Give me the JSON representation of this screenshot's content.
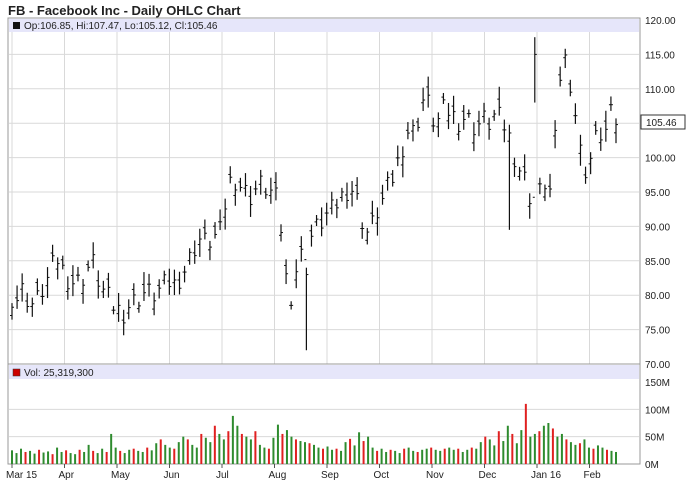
{
  "title": "FB - Facebook Inc - Daily OHLC Chart",
  "ohlc_summary": "Op:106.85, Hi:107.47, Lo:105.12, Cl:105.46",
  "volume_summary": "Vol: 25,319,300",
  "last_price_label": "105.46",
  "colors": {
    "bars": "#111111",
    "header_band": "#e6e6fa",
    "grid": "#d9d9d9",
    "volume_up": "#2e8b2e",
    "volume_down": "#e02020",
    "last_price_box": "#ffffff",
    "volume_marker": "#cc0000"
  },
  "chart_data": [
    {
      "type": "ohlc",
      "title": "",
      "y_ticks": [
        "120.00",
        "115.00",
        "110.00",
        "105.00",
        "100.00",
        "95.00",
        "90.00",
        "85.00",
        "80.00",
        "75.00",
        "70.00"
      ],
      "ylim": [
        70,
        120
      ],
      "x_ticks": [
        "Mar 15",
        "Apr",
        "May",
        "Jun",
        "Jul",
        "Aug",
        "Sep",
        "Oct",
        "Nov",
        "Dec",
        "Jan 16",
        "Feb"
      ],
      "grid": true,
      "series": [
        {
          "path": [
            [
              "Mar 15",
              80.0
            ],
            [
              "Mar 15",
              79.5
            ],
            [
              "Mar 15",
              81.0
            ],
            [
              "Mar 15",
              79.0
            ],
            [
              "Mar 15",
              78.5
            ],
            [
              "Apr",
              80.5
            ],
            [
              "Apr",
              82.0
            ],
            [
              "Apr",
              84.0
            ],
            [
              "Apr",
              85.5
            ],
            [
              "Apr",
              83.0
            ],
            [
              "Apr",
              82.5
            ],
            [
              "Apr",
              81.5
            ],
            [
              "Apr",
              82.5
            ],
            [
              "Apr",
              84.0
            ],
            [
              "Apr",
              84.5
            ],
            [
              "May",
              82.0
            ],
            [
              "May",
              80.0
            ],
            [
              "May",
              79.0
            ],
            [
              "May",
              78.0
            ],
            [
              "May",
              77.5
            ],
            [
              "May",
              78.5
            ],
            [
              "May",
              79.0
            ],
            [
              "May",
              80.0
            ],
            [
              "May",
              80.5
            ],
            [
              "May",
              80.0
            ],
            [
              "Jun",
              80.5
            ],
            [
              "Jun",
              81.0
            ],
            [
              "Jun",
              82.0
            ],
            [
              "Jun",
              81.5
            ],
            [
              "Jun",
              83.0
            ],
            [
              "Jun",
              84.0
            ],
            [
              "Jun",
              86.0
            ],
            [
              "Jun",
              88.5
            ],
            [
              "Jun",
              87.5
            ],
            [
              "Jun",
              88.0
            ],
            [
              "Jul",
              88.5
            ],
            [
              "Jul",
              89.0
            ],
            [
              "Jul",
              95.0
            ],
            [
              "Jul",
              97.5
            ],
            [
              "Jul",
              96.5
            ],
            [
              "Jul",
              95.0
            ],
            [
              "Jul",
              94.5
            ],
            [
              "Jul",
              95.5
            ],
            [
              "Jul",
              96.0
            ],
            [
              "Jul",
              95.5
            ],
            [
              "Aug",
              94.5
            ],
            [
              "Aug",
              93.0
            ],
            [
              "Aug",
              83.0
            ],
            [
              "Aug",
              80.0
            ],
            [
              "Aug",
              84.0
            ],
            [
              "Aug",
              86.0
            ],
            [
              "Aug",
              88.0
            ],
            [
              "Aug",
              89.0
            ],
            [
              "Sep",
              90.5
            ],
            [
              "Sep",
              91.5
            ],
            [
              "Sep",
              92.0
            ],
            [
              "Sep",
              93.5
            ],
            [
              "Sep",
              94.5
            ],
            [
              "Sep",
              96.0
            ],
            [
              "Sep",
              95.0
            ],
            [
              "Sep",
              92.0
            ],
            [
              "Sep",
              89.0
            ],
            [
              "Sep",
              90.0
            ],
            [
              "Oct",
              92.5
            ],
            [
              "Oct",
              94.0
            ],
            [
              "Oct",
              96.0
            ],
            [
              "Oct",
              98.0
            ],
            [
              "Oct",
              101.0
            ],
            [
              "Oct",
              104.0
            ],
            [
              "Oct",
              103.5
            ],
            [
              "Nov",
              106.0
            ],
            [
              "Nov",
              109.0
            ],
            [
              "Nov",
              107.0
            ],
            [
              "Nov",
              104.5
            ],
            [
              "Nov",
              106.5
            ],
            [
              "Nov",
              107.0
            ],
            [
              "Nov",
              106.0
            ],
            [
              "Nov",
              105.5
            ],
            [
              "Dec",
              106.0
            ],
            [
              "Dec",
              105.0
            ],
            [
              "Dec",
              104.5
            ],
            [
              "Dec",
              105.5
            ],
            [
              "Dec",
              105.0
            ],
            [
              "Dec",
              106.0
            ],
            [
              "Dec",
              105.5
            ],
            [
              "Dec",
              104.5
            ],
            [
              "Jan 16",
              102.0
            ],
            [
              "Jan 16",
              99.0
            ],
            [
              "Jan 16",
              97.5
            ],
            [
              "Jan 16",
              95.0
            ],
            [
              "Jan 16",
              93.0
            ],
            [
              "Jan 16",
              95.0
            ],
            [
              "Jan 16",
              97.0
            ],
            [
              "Jan 16",
              94.0
            ],
            [
              "Feb",
              110.0
            ],
            [
              "Feb",
              115.0
            ],
            [
              "Feb",
              112.0
            ],
            [
              "Feb",
              106.5
            ],
            [
              "Feb",
              100.0
            ],
            [
              "Feb",
              98.0
            ],
            [
              "Feb",
              101.0
            ],
            [
              "Feb",
              104.0
            ],
            [
              "Feb",
              103.0
            ],
            [
              "Feb",
              106.0
            ],
            [
              "Feb",
              105.5
            ]
          ]
        }
      ]
    },
    {
      "type": "bar",
      "title": "",
      "y_ticks": [
        "150M",
        "100M",
        "50M",
        "0M"
      ],
      "ylim": [
        0,
        150
      ],
      "x_ticks": [
        "Mar 15",
        "Apr",
        "May",
        "Jun",
        "Jul",
        "Aug",
        "Sep",
        "Oct",
        "Nov",
        "Dec",
        "Jan 16",
        "Feb"
      ],
      "series": [
        {
          "values": [
            25,
            20,
            28,
            22,
            24,
            19,
            26,
            21,
            23,
            18,
            30,
            22,
            25,
            20,
            18,
            26,
            22,
            35,
            24,
            20,
            28,
            22,
            55,
            30,
            24,
            20,
            26,
            28,
            24,
            22,
            30,
            25,
            38,
            45,
            35,
            30,
            28,
            40,
            50,
            45,
            35,
            30,
            55,
            48,
            40,
            70,
            55,
            45,
            60,
            88,
            70,
            55,
            50,
            45,
            60,
            35,
            30,
            28,
            48,
            72,
            55,
            62,
            50,
            45,
            42,
            40,
            38,
            35,
            30,
            28,
            32,
            26,
            28,
            24,
            40,
            46,
            34,
            58,
            42,
            50,
            30,
            24,
            28,
            22,
            26,
            24,
            20,
            28,
            30,
            24,
            22,
            26,
            28,
            30,
            26,
            24,
            28,
            30,
            26,
            28,
            22,
            26,
            30,
            28,
            40,
            50,
            45,
            34,
            60,
            42,
            70,
            55,
            38,
            62,
            110,
            50,
            55,
            60,
            70,
            75,
            65,
            50,
            55,
            45,
            40,
            35,
            38,
            45,
            30,
            28,
            34,
            30,
            26,
            24,
            22
          ]
        }
      ]
    }
  ]
}
